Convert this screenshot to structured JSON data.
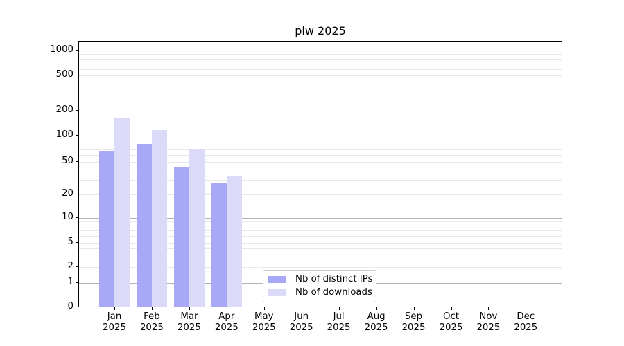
{
  "title": "plw 2025",
  "chart_data": {
    "type": "bar",
    "title": "plw 2025",
    "categories": [
      "Jan 2025",
      "Feb 2025",
      "Mar 2025",
      "Apr 2025",
      "May 2025",
      "Jun 2025",
      "Jul 2025",
      "Aug 2025",
      "Sep 2025",
      "Oct 2025",
      "Nov 2025",
      "Dec 2025"
    ],
    "series": [
      {
        "name": "Nb of distinct IPs",
        "color": "#a8a8f8",
        "values": [
          66,
          79,
          42,
          27,
          0,
          0,
          0,
          0,
          0,
          0,
          0,
          0
        ]
      },
      {
        "name": "Nb of downloads",
        "color": "#dbdbf9",
        "values": [
          163,
          115,
          69,
          33,
          0,
          0,
          0,
          0,
          0,
          0,
          0,
          0
        ]
      }
    ],
    "xlabel": "",
    "ylabel": "",
    "y_ticks": [
      0,
      1,
      2,
      5,
      10,
      20,
      50,
      100,
      200,
      500,
      1000
    ],
    "ylim": [
      0,
      1000
    ],
    "y_scale": "log-like with zero baseline",
    "grid": "both",
    "legend_position": "inside lower-center-left"
  },
  "colors": {
    "bar_distinct_ips": "#a8a8f8",
    "bar_downloads": "#dbdbf9",
    "grid_major": "#b4b4b4",
    "grid_minor": "#e8e8e8",
    "axis_line": "#000000",
    "text": "#000000",
    "legend_border": "#cccccc",
    "background": "#ffffff"
  }
}
